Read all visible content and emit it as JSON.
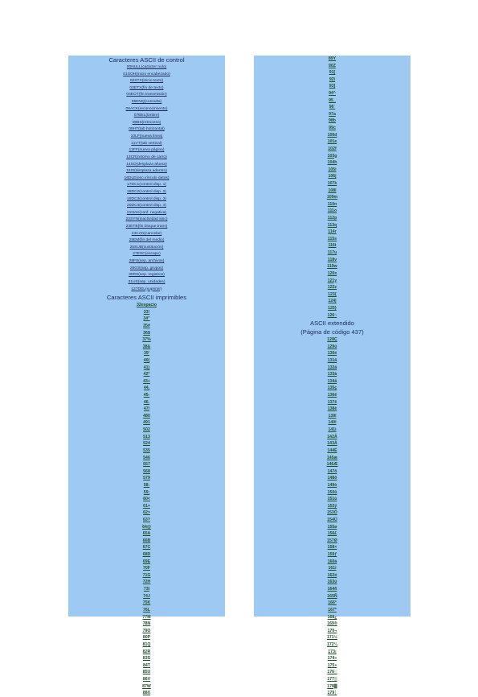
{
  "left": {
    "control_title": "Caracteres ASCII de control",
    "control": [
      "00NULL(carácter nulo)",
      "01SOH(inicio encabezado)",
      "02STX(inicio texto)",
      "03ETX(fin de texto)",
      "04EOT(fin transmisión)",
      "05ENQ(consulta)",
      "06ACK(reconocimiento)",
      "07BEL(timbre)",
      "08BS(retroceso)",
      "09HT(tab horizontal)",
      "10LF(nueva línea)",
      "11VT(tab vertical)",
      "12FF(nueva página)",
      "13CR(retorno de carro)",
      "14SO(desplaza afuera)",
      "15SI(desplaza adentro)",
      "16DLE(esc.vínculo datos)",
      "17DC1(control disp. 1)",
      "18DC2(control disp. 2)",
      "19DC3(control disp. 3)",
      "20DC4(control disp. 4)",
      "21NAK(conf. negativa)",
      "22SYN(inactividad sinc)",
      "23ETB(fin bloque trans)",
      "24CAN(cancelar)",
      "25EM(fin del medio)",
      "26SUB(sustitución)",
      "27ESC(escape)",
      "28FS(sep. archivos)",
      "29GS(sep. grupos)",
      "30RS(sep. registros)",
      "31US(sep. unidades)",
      "127DEL(suprimir)"
    ],
    "printable_title": "Caracteres ASCII imprimibles",
    "printable": [
      "32espacio",
      "33!",
      "34\"",
      "35#",
      "36$",
      "37%",
      "38&",
      "39'",
      "40(",
      "41)",
      "42*",
      "43+",
      "44,",
      "45-",
      "46.",
      "47/",
      "480",
      "491",
      "502",
      "513",
      "524",
      "535",
      "546",
      "557",
      "568",
      "579",
      "58:",
      "59;",
      "60<",
      "61=",
      "62>",
      "63?",
      "64@",
      "65A",
      "66B",
      "67C",
      "68D",
      "69E",
      "70F",
      "71G",
      "72H",
      "73I",
      "74J",
      "75K",
      "76L",
      "77M",
      "78N",
      "79O",
      "80P",
      "81Q",
      "82R",
      "83S",
      "84T",
      "85U",
      "86V",
      "87W",
      "88X"
    ]
  },
  "right": {
    "printable_cont": [
      "89Y",
      "90Z",
      "91[",
      "92\\",
      "93]",
      "94^",
      "95_",
      "96`",
      "97a",
      "98b",
      "99c",
      "100d",
      "101e",
      "102f",
      "103g",
      "104h",
      "105i",
      "106j",
      "107k",
      "108l",
      "109m",
      "110n",
      "111o",
      "112p",
      "113q",
      "114r",
      "115s",
      "116t",
      "117u",
      "118v",
      "119w",
      "120x",
      "121y",
      "122z",
      "123{",
      "124|",
      "125}",
      "126~"
    ],
    "extended_title_1": "ASCII extendido",
    "extended_title_2": "(Página de código 437)",
    "extended": [
      "128Ç",
      "129ü",
      "130é",
      "131â",
      "132ä",
      "133à",
      "134å",
      "135ç",
      "136ê",
      "137ë",
      "138è",
      "139ï",
      "140î",
      "141ì",
      "142Ä",
      "143Å",
      "144É",
      "145æ",
      "146Æ",
      "147ô",
      "148ö",
      "149ò",
      "150û",
      "151ù",
      "152ÿ",
      "153Ö",
      "154Ü",
      "155ø",
      "156£",
      "157Ø",
      "158×",
      "159ƒ",
      "160á",
      "161í",
      "162ó",
      "163ú",
      "164ñ",
      "165Ñ",
      "166ª",
      "167º",
      "168¿",
      "169®",
      "170¬",
      "171½",
      "172¼",
      "173¡",
      "174«",
      "175»",
      "176░",
      "177▒",
      "178▓",
      "179│"
    ]
  }
}
